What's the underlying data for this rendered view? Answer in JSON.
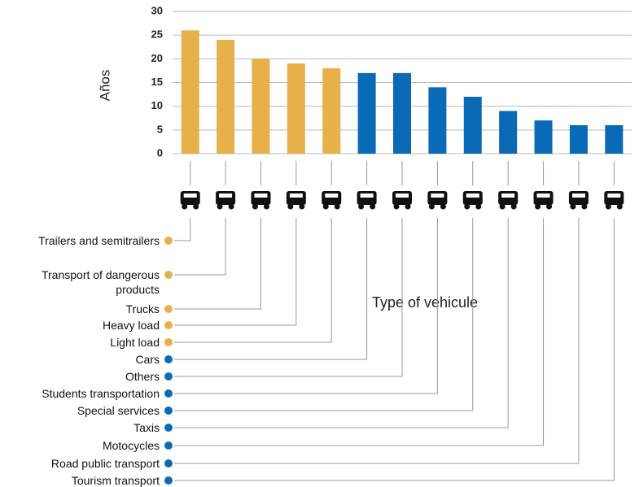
{
  "chart_data": {
    "type": "bar",
    "ylabel": "Años",
    "annotation": "Type of vehicule",
    "categories": [
      "Trailers and semitrailers",
      "Transport of dangerous products",
      "Trucks",
      "Heavy load",
      "Light load",
      "Cars",
      "Others",
      "Students transportation",
      "Special services",
      "Taxis",
      "Motocycles",
      "Road public transport",
      "Tourism transport"
    ],
    "values": [
      26,
      24,
      20,
      19,
      18,
      17,
      17,
      14,
      12,
      9,
      7,
      6,
      6
    ],
    "colors": [
      "#e8b04a",
      "#e8b04a",
      "#e8b04a",
      "#e8b04a",
      "#e8b04a",
      "#0a6ab5",
      "#0a6ab5",
      "#0a6ab5",
      "#0a6ab5",
      "#0a6ab5",
      "#0a6ab5",
      "#0a6ab5",
      "#0a6ab5"
    ],
    "ylim": [
      0,
      30
    ],
    "yticks": [
      0,
      5,
      10,
      15,
      20,
      25,
      30
    ],
    "grid": true
  }
}
